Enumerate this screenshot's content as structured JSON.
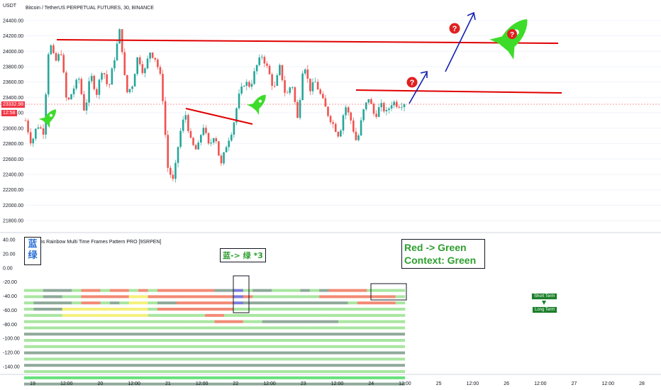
{
  "symbol_title": "Bitcoin / TetherUS PERPETUAL FUTURES, 30, BINANCE",
  "currency_label": "USDT",
  "indicator_title": "Seasons Rainbow Multi Time Frames Pattern PRO [9SRPEN]",
  "last_price_label": "23332.98",
  "countdown_label": "12:58",
  "annotations": {
    "blue_green_note": "蓝-> 绿 *3",
    "context_line1": "Red -> Green",
    "context_line2": "Context: Green",
    "corner_box_line1": "蓝",
    "corner_box_line2": "绿",
    "short_term_label": "Short Term",
    "long_term_label": "Long Term",
    "question_mark": "?"
  },
  "colors": {
    "up_candle": "#26a69a",
    "down_candle": "#ef5350",
    "trendline_red": "#e00000",
    "arrow_blue": "#1420b0",
    "rocket_green": "#3ddc2a",
    "question_red": "#e02020",
    "band_light_green": "#a8e6a0",
    "band_dark_gray": "#8fa99a",
    "band_salmon": "#f28a75",
    "band_yellow": "#f5f07a",
    "band_blue": "#7b7bdb",
    "band_gray": "#c8d0cc",
    "band_bright_green": "#66e07a"
  },
  "chart_data": {
    "type": "candlestick",
    "price_axis": {
      "ticks": [
        "24400.00",
        "24200.00",
        "24000.00",
        "23800.00",
        "23600.00",
        "23400.00",
        "23200.00",
        "23000.00",
        "22800.00",
        "22600.00",
        "22400.00",
        "22200.00",
        "22000.00",
        "21800.00"
      ],
      "range": [
        21700,
        24500
      ]
    },
    "indicator_axis": {
      "ticks": [
        "40.00",
        "20.00",
        "0.00",
        "-20.00",
        "-40.00",
        "-60.00",
        "-80.00",
        "-100.00",
        "-120.00",
        "-140.00"
      ],
      "range": [
        -145,
        45
      ]
    },
    "time_axis": {
      "ticks": [
        "19",
        "12:00",
        "20",
        "12:00",
        "21",
        "12:00",
        "22",
        "12:00",
        "23",
        "12:00",
        "24",
        "12:00",
        "25",
        "12:00",
        "26",
        "12:00",
        "27",
        "12:00",
        "28"
      ]
    },
    "price_path": [
      [
        0,
        23100
      ],
      [
        0.5,
        22800
      ],
      [
        1,
        23050
      ],
      [
        1.5,
        22950
      ],
      [
        2,
        24150
      ],
      [
        2.5,
        23850
      ],
      [
        3,
        24000
      ],
      [
        3.5,
        23300
      ],
      [
        4,
        23500
      ],
      [
        4.5,
        23650
      ],
      [
        5,
        23200
      ],
      [
        5.5,
        23700
      ],
      [
        6,
        23450
      ],
      [
        6.5,
        23800
      ],
      [
        7,
        23500
      ],
      [
        7.5,
        23900
      ],
      [
        8,
        24300
      ],
      [
        8.5,
        23450
      ],
      [
        9,
        23550
      ],
      [
        9.5,
        23950
      ],
      [
        10,
        23700
      ],
      [
        10.5,
        24000
      ],
      [
        11,
        23900
      ],
      [
        11.5,
        23600
      ],
      [
        12,
        22500
      ],
      [
        12.5,
        22300
      ],
      [
        13,
        22900
      ],
      [
        13.5,
        23200
      ],
      [
        14,
        22800
      ],
      [
        14.5,
        22700
      ],
      [
        15,
        23050
      ],
      [
        15.5,
        22750
      ],
      [
        16,
        22950
      ],
      [
        16.5,
        22500
      ],
      [
        17,
        22800
      ],
      [
        17.5,
        23000
      ],
      [
        18,
        23400
      ],
      [
        18.5,
        23600
      ],
      [
        19,
        23550
      ],
      [
        19.5,
        23800
      ],
      [
        20,
        23950
      ],
      [
        20.5,
        23750
      ],
      [
        21,
        23500
      ],
      [
        21.5,
        23800
      ],
      [
        22,
        23400
      ],
      [
        22.5,
        23600
      ],
      [
        23,
        23100
      ],
      [
        23.5,
        23900
      ],
      [
        24,
        23500
      ],
      [
        24.5,
        23600
      ],
      [
        25,
        23400
      ],
      [
        25.5,
        23200
      ],
      [
        26,
        23050
      ],
      [
        26.5,
        22900
      ],
      [
        27,
        23300
      ],
      [
        27.5,
        23100
      ],
      [
        28,
        22800
      ],
      [
        28.5,
        23200
      ],
      [
        29,
        23400
      ],
      [
        29.5,
        23150
      ],
      [
        30,
        23300
      ],
      [
        30.5,
        23200
      ],
      [
        31,
        23350
      ],
      [
        31.5,
        23300
      ],
      [
        32,
        23333
      ]
    ],
    "indicator_rows": [
      [
        "G",
        "G",
        "D",
        "D",
        "D",
        "G",
        "S",
        "S",
        "G",
        "S",
        "S",
        "G",
        "S",
        "G",
        "S",
        "S",
        "S",
        "S",
        "S",
        "S",
        "D",
        "D",
        "B",
        "G",
        "D",
        "D",
        "G",
        "G",
        "G",
        "D",
        "G",
        "D",
        "S",
        "S",
        "S",
        "S",
        "G",
        "G",
        "G",
        "G"
      ],
      [
        "G",
        "G",
        "D",
        "D",
        "G",
        "G",
        "S",
        "S",
        "S",
        "S",
        "S",
        "Y",
        "Y",
        "S",
        "S",
        "S",
        "S",
        "S",
        "S",
        "S",
        "S",
        "S",
        "B",
        "S",
        "G",
        "G",
        "G",
        "G",
        "G",
        "G",
        "G",
        "S",
        "S",
        "S",
        "S",
        "S",
        "S",
        "S",
        "S",
        "G"
      ],
      [
        "G",
        "D",
        "D",
        "D",
        "D",
        "G",
        "S",
        "S",
        "G",
        "D",
        "G",
        "Y",
        "Y",
        "G",
        "D",
        "D",
        "S",
        "S",
        "S",
        "S",
        "S",
        "S",
        "B",
        "D",
        "D",
        "D",
        "D",
        "D",
        "D",
        "D",
        "D",
        "D",
        "D",
        "D",
        "G",
        "S",
        "S",
        "S",
        "S",
        "G"
      ],
      [
        "G",
        "D",
        "D",
        "D",
        "Y",
        "Y",
        "Y",
        "Y",
        "Y",
        "Y",
        "Y",
        "Y",
        "Y",
        "G",
        "S",
        "S",
        "S",
        "S",
        "S",
        "S",
        "S",
        "S",
        "G",
        "G",
        "G",
        "G",
        "G",
        "G",
        "G",
        "G",
        "G",
        "G",
        "G",
        "G",
        "G",
        "G",
        "G",
        "G",
        "G",
        "G"
      ],
      [
        "G",
        "G",
        "G",
        "G",
        "Y",
        "Y",
        "Y",
        "Y",
        "Y",
        "Y",
        "Y",
        "Y",
        "Y",
        "G",
        "G",
        "G",
        "G",
        "G",
        "G",
        "S",
        "S",
        "G",
        "G",
        "G",
        "G",
        "G",
        "G",
        "G",
        "G",
        "G",
        "G",
        "G",
        "G",
        "G",
        "G",
        "G",
        "G",
        "G",
        "G",
        "G"
      ],
      [
        "G",
        "G",
        "G",
        "G",
        "G",
        "G",
        "G",
        "G",
        "G",
        "G",
        "G",
        "G",
        "G",
        "G",
        "G",
        "G",
        "G",
        "G",
        "G",
        "G",
        "S",
        "S",
        "S",
        "G",
        "G",
        "D",
        "D",
        "D",
        "D",
        "D",
        "D",
        "D",
        "D",
        "G",
        "G",
        "G",
        "G",
        "G",
        "G",
        "G"
      ]
    ],
    "full_rows": [
      "G",
      "D",
      "G",
      "G",
      "D",
      "G",
      "D",
      "G",
      "V",
      "D"
    ]
  }
}
